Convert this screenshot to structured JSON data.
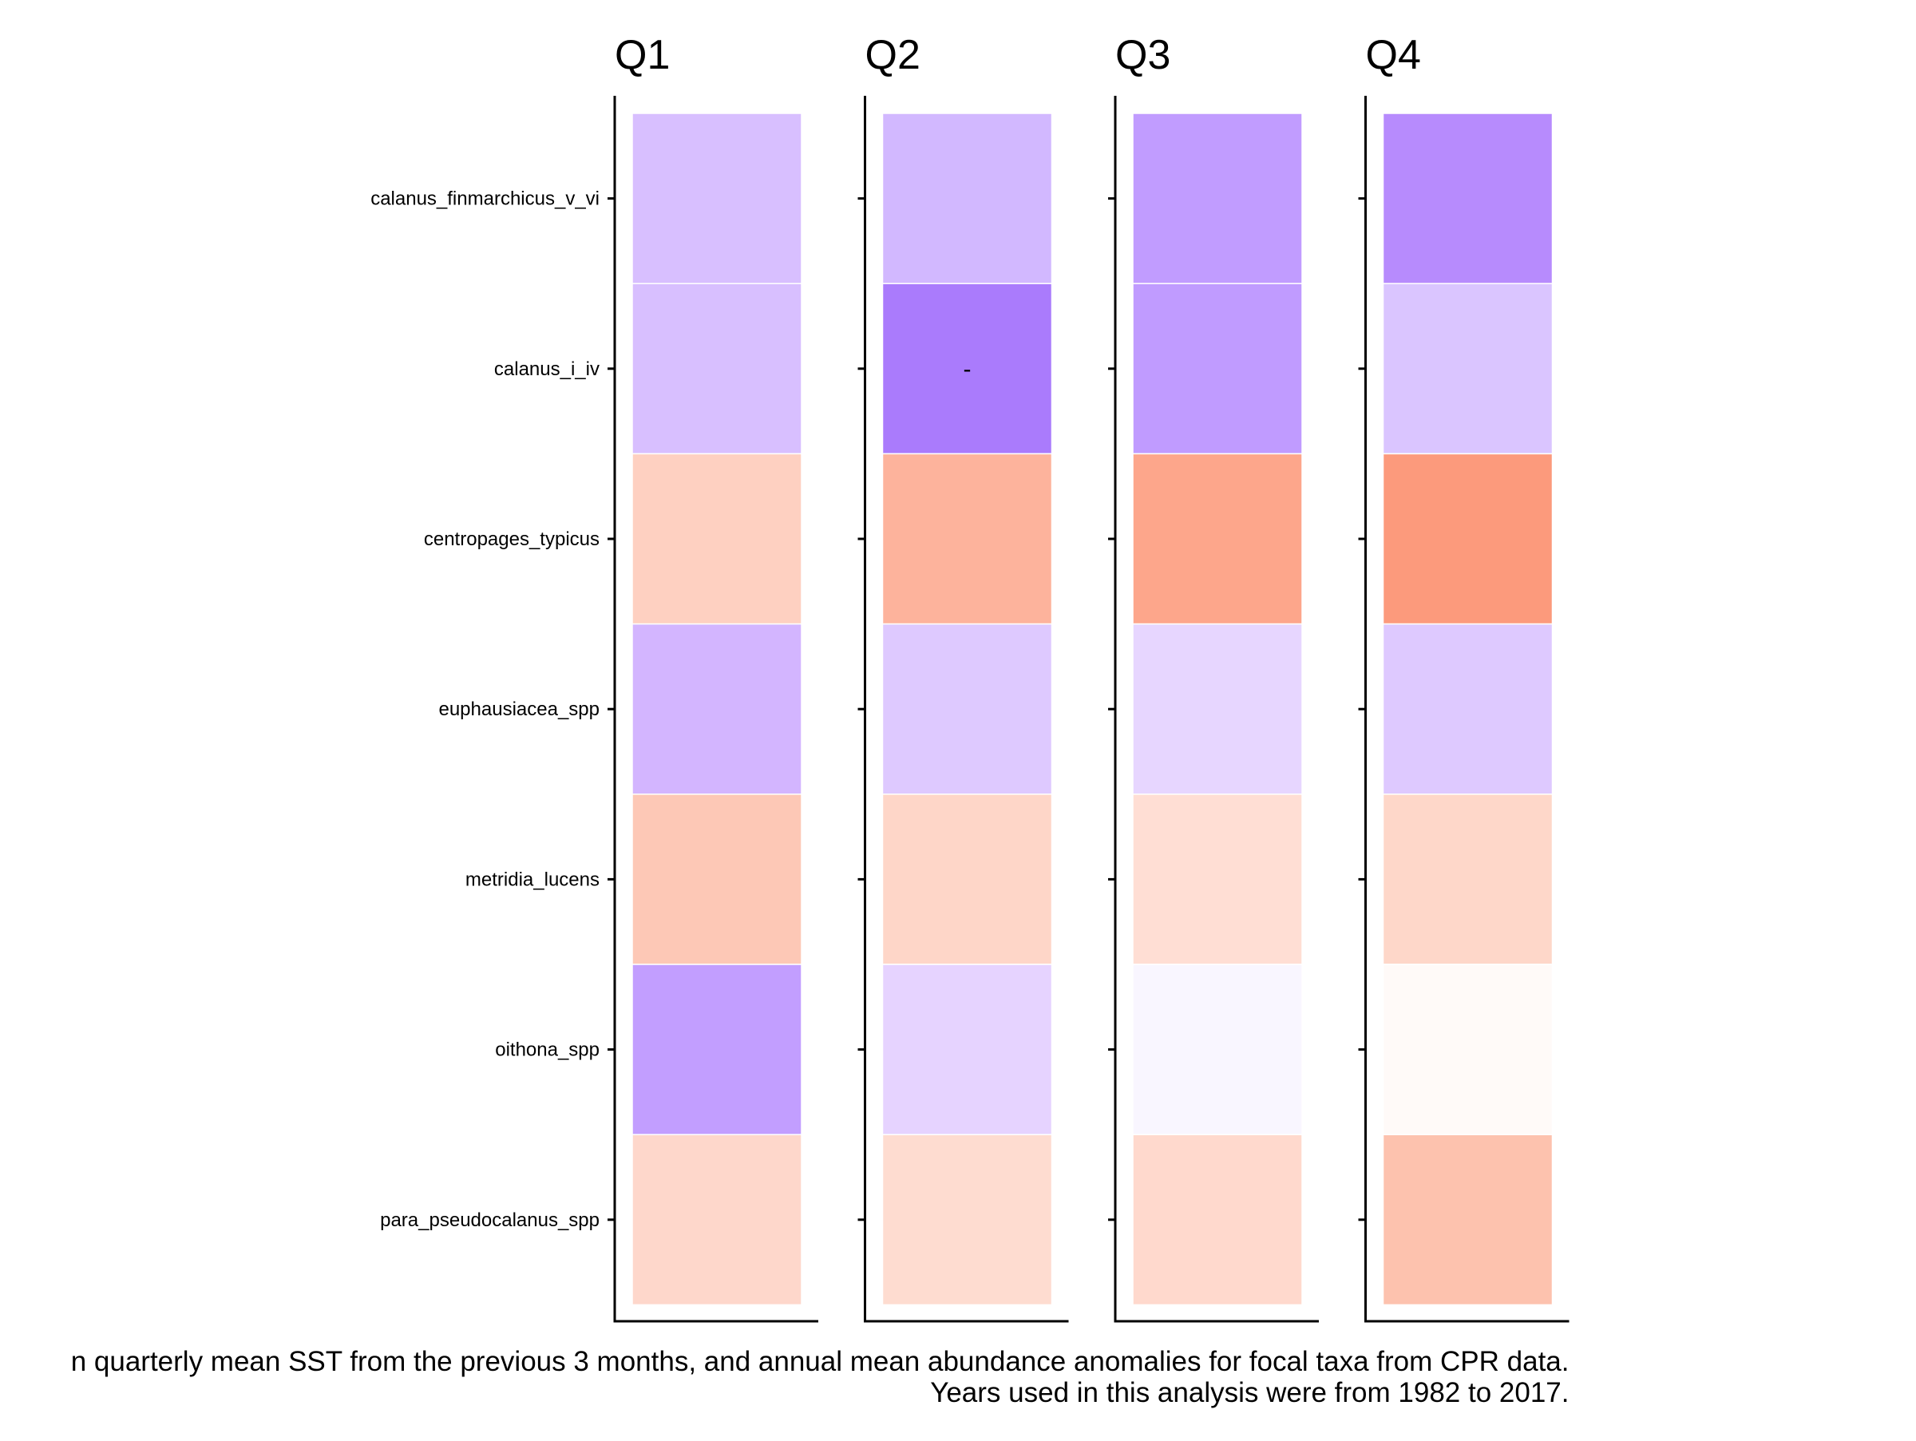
{
  "chart_data": {
    "type": "heatmap",
    "panels": [
      "Q1",
      "Q2",
      "Q3",
      "Q4"
    ],
    "rows": [
      "calanus_finmarchicus_v_vi",
      "calanus_i_iv",
      "centropages_typicus",
      "euphausiacea_spp",
      "metridia_lucens",
      "oithona_spp",
      "para_pseudocalanus_spp"
    ],
    "cell_colors": [
      [
        "#d8bfff",
        "#d2b8ff",
        "#c19cff",
        "#b78bfd"
      ],
      [
        "#d8bfff",
        "#aa7bfc",
        "#c09bff",
        "#dac5ff"
      ],
      [
        "#fed0c1",
        "#fdb39c",
        "#fda68b",
        "#fc9a7c"
      ],
      [
        "#d3b5ff",
        "#dec9ff",
        "#e7d6ff",
        "#dec9ff"
      ],
      [
        "#fdc8b6",
        "#fed6c8",
        "#ffded4",
        "#fed7c9"
      ],
      [
        "#c29eff",
        "#e6d3ff",
        "#f9f6ff",
        "#fffaf8"
      ],
      [
        "#fed7cb",
        "#fedcd0",
        "#ffd9cd",
        "#fdc2ae"
      ]
    ],
    "annotations": [
      {
        "panel": "Q2",
        "row": "calanus_i_iv",
        "text": "-"
      }
    ],
    "caption_lines": [
      "n quarterly mean SST from the previous 3 months, and annual mean abundance anomalies for focal taxa from CPR data.",
      "Years used in this analysis were from 1982 to 2017."
    ],
    "legend": "none",
    "grid": false
  }
}
